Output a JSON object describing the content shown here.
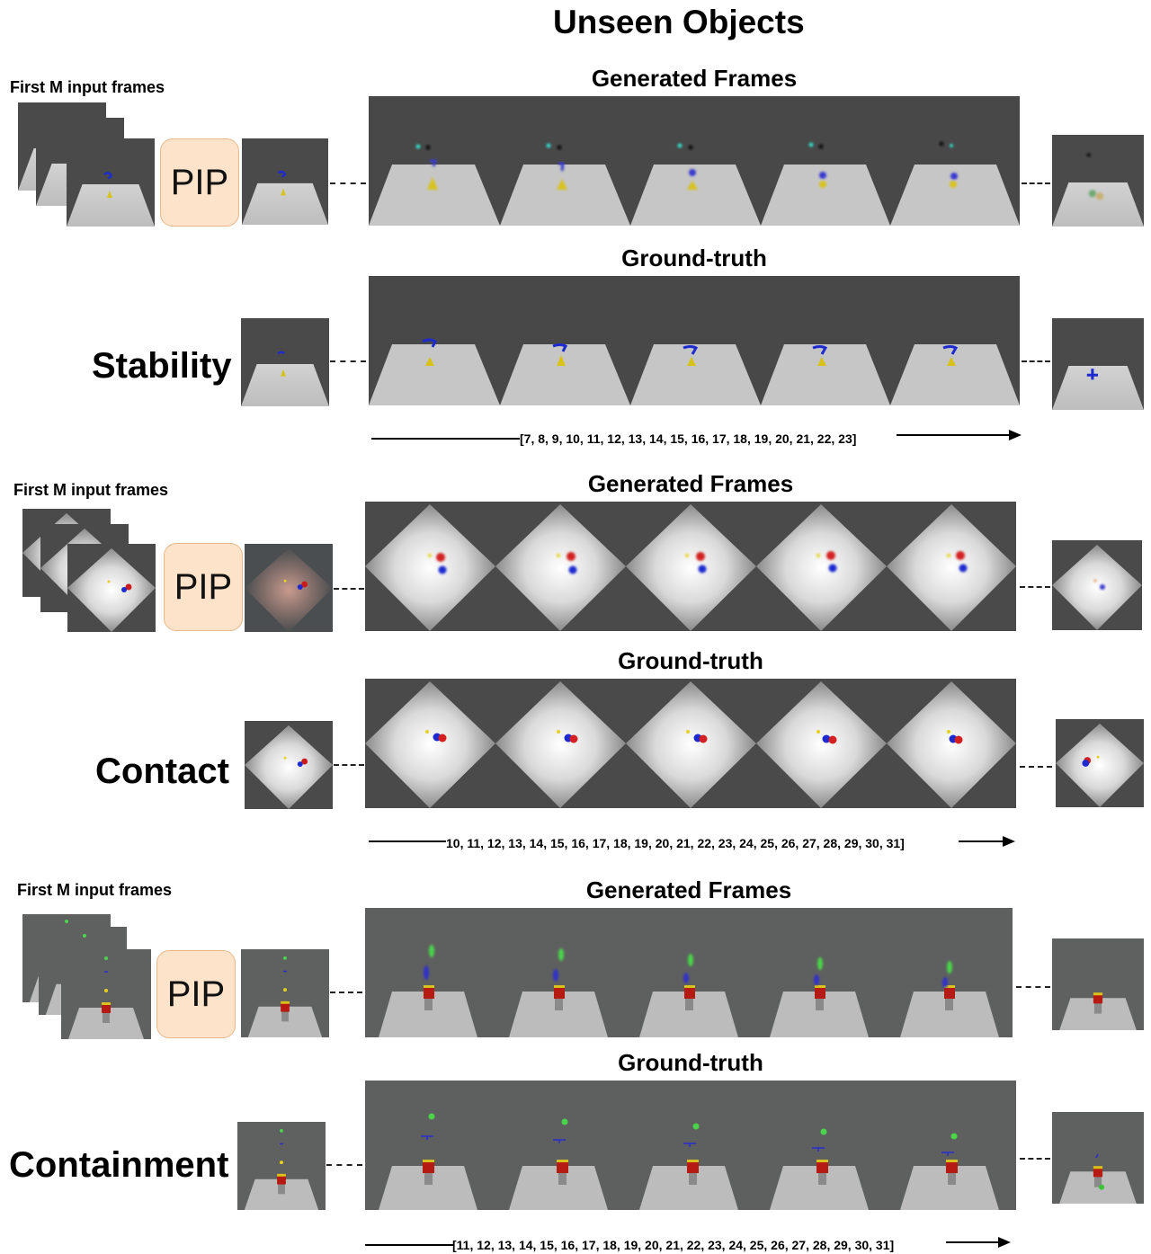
{
  "title": "Unseen Objects",
  "input_label": "First M input frames",
  "pip_label": "PIP",
  "generated_label": "Generated Frames",
  "gt_label": "Ground-truth",
  "sections": [
    {
      "name": "Stability",
      "timeline": "[7, 8, 9, 10, 11, 12, 13, 14, 15, 16, 17, 18, 19, 20, 21, 22, 23]"
    },
    {
      "name": "Contact",
      "timeline": "10, 11, 12, 13, 14, 15, 16, 17, 18, 19, 20, 21, 22, 23, 24, 25, 26, 27, 28, 29, 30, 31]"
    },
    {
      "name": "Containment",
      "timeline": "[11, 12, 13, 14, 15, 16, 17, 18, 19, 20, 21, 22, 23, 24, 25, 26, 27, 28, 29, 30, 31]"
    }
  ],
  "colors": {
    "bg_dark": "#4a4a4a",
    "floor": "#c8c8c8",
    "pip_fill": "#fde3c9"
  }
}
